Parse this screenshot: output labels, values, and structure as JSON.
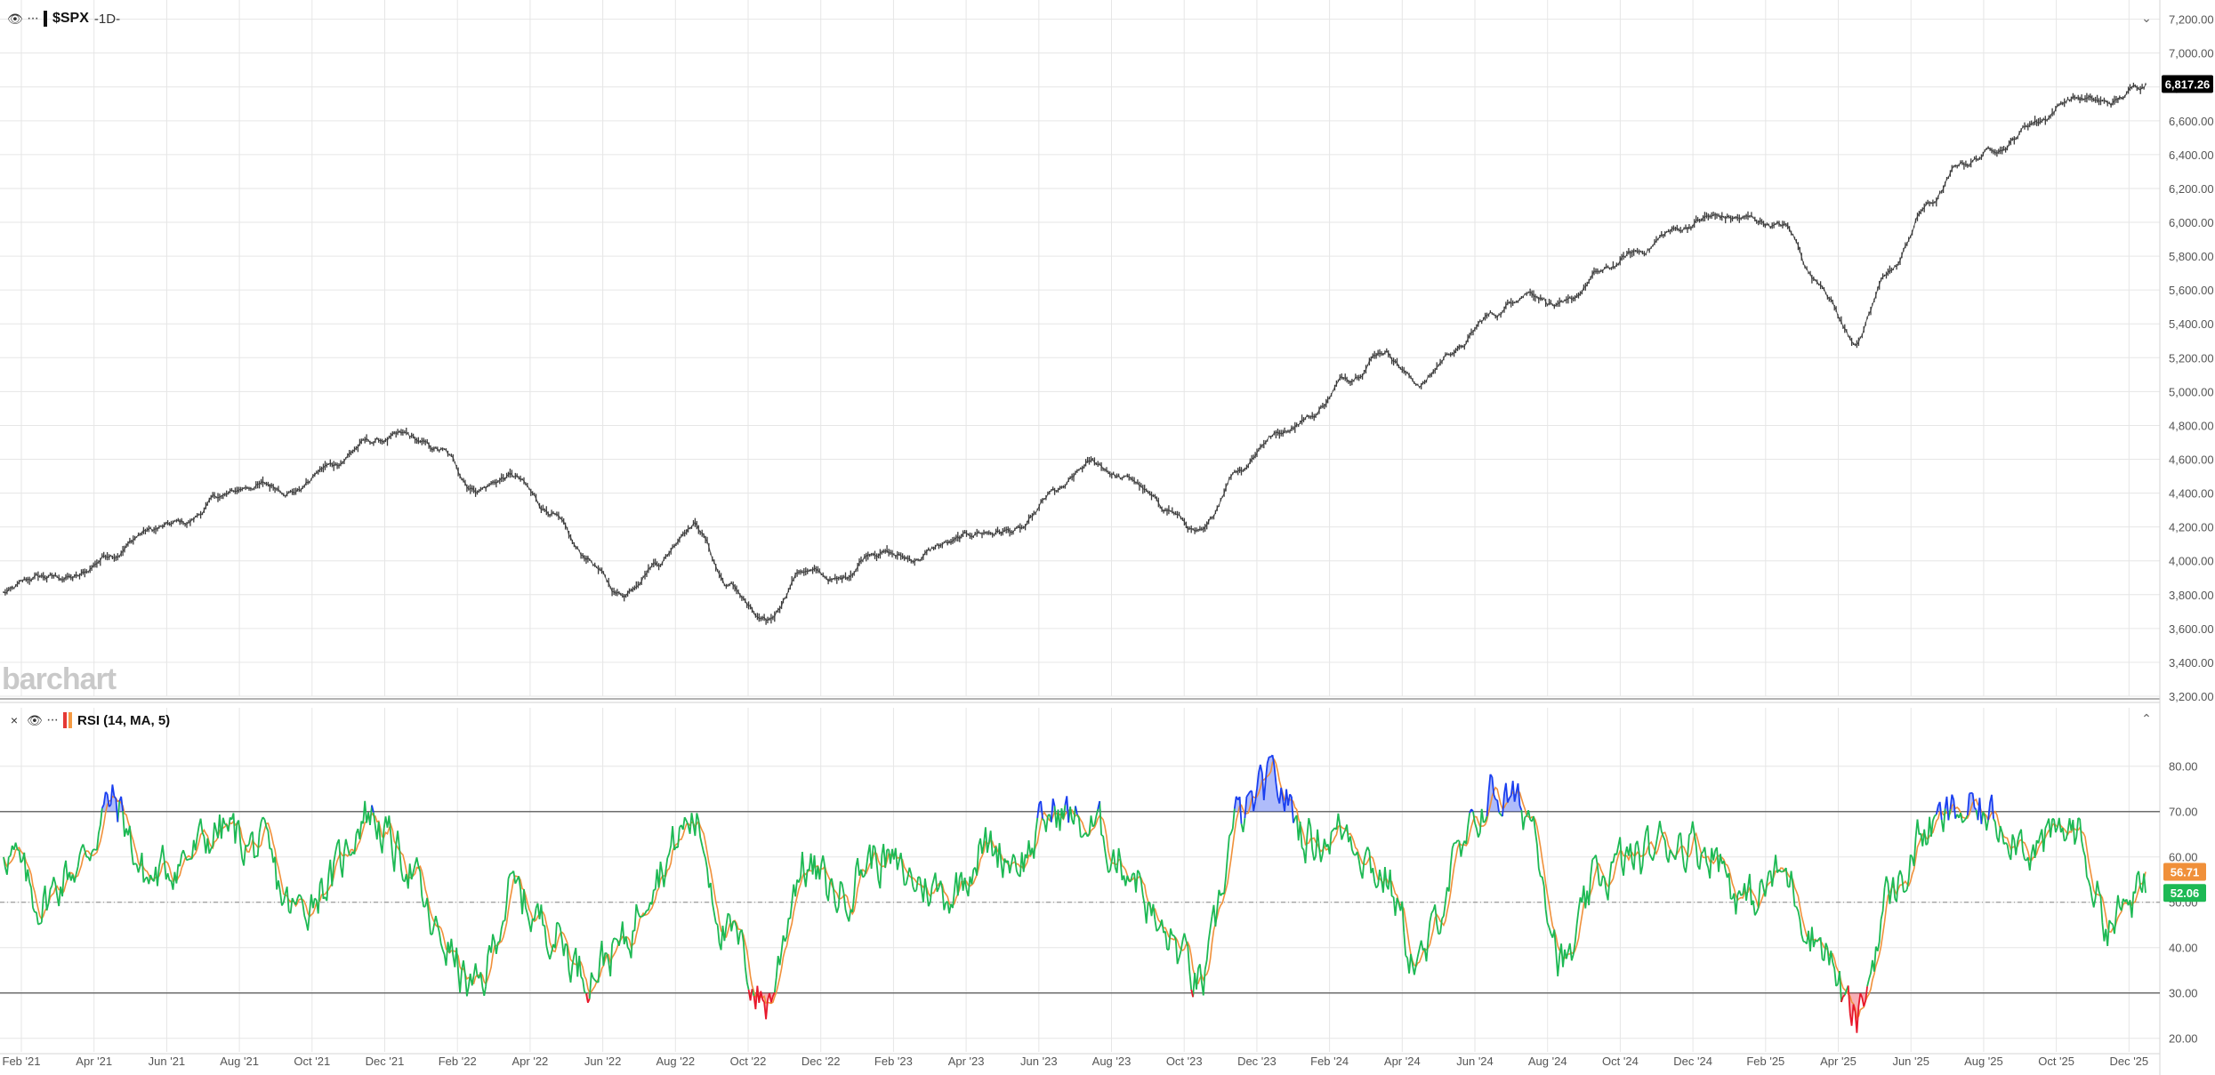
{
  "price_panel": {
    "symbol": "$SPX",
    "timeframe": "-1D-",
    "last_price_label": "6,817.26",
    "watermark": "barchart"
  },
  "rsi_panel": {
    "indicator_label": "RSI (14, MA, 5)",
    "rsi_value_label": "52.06",
    "ma_value_label": "56.71"
  },
  "icons": {
    "visibility": "eye-icon",
    "more": "more-dots-icon",
    "close": "close-icon",
    "collapse": "chevron-down-icon",
    "expand": "chevron-up-icon"
  },
  "colors": {
    "price_line": "#3a3a3a",
    "rsi_line": "#1db954",
    "rsi_ma_line": "#f0903a",
    "overbought_fill": "#1a3ff0",
    "oversold_fill": "#e8182b",
    "last_price_tag": "#000000",
    "rsi_tag": "#1db954",
    "ma_tag": "#f0903a",
    "grid": "#e6e6e6"
  },
  "chart_data": [
    {
      "type": "line",
      "name": "$SPX daily",
      "y_ticks": [
        "3,200.00",
        "3,400.00",
        "3,600.00",
        "3,800.00",
        "4,000.00",
        "4,200.00",
        "4,400.00",
        "4,600.00",
        "4,800.00",
        "5,000.00",
        "5,200.00",
        "5,400.00",
        "5,600.00",
        "5,800.00",
        "6,000.00",
        "6,200.00",
        "6,400.00",
        "6,600.00",
        "6,800.00",
        "7,000.00",
        "7,200.00"
      ],
      "ylim": [
        3200,
        7240
      ],
      "x_tick_labels": [
        "Feb '21",
        "Apr '21",
        "Jun '21",
        "Aug '21",
        "Oct '21",
        "Dec '21",
        "Feb '22",
        "Apr '22",
        "Jun '22",
        "Aug '22",
        "Oct '22",
        "Dec '22",
        "Feb '23",
        "Apr '23",
        "Jun '23",
        "Aug '23",
        "Oct '23",
        "Dec '23",
        "Feb '24",
        "Apr '24",
        "Jun '24",
        "Aug '24",
        "Oct '24",
        "Dec '24",
        "Feb '25",
        "Apr '25",
        "Jun '25",
        "Aug '25",
        "Oct '25",
        "Dec '25"
      ],
      "x": [
        "Jan '21",
        "Feb '21",
        "Mar '21",
        "Apr '21",
        "May '21",
        "Jun '21",
        "Jul '21",
        "Aug '21",
        "Sep '21",
        "Oct '21",
        "Nov '21",
        "Dec '21",
        "Jan '22",
        "Feb '22",
        "Mar '22",
        "Apr '22",
        "May '22",
        "Jun '22",
        "Jul '22",
        "Aug '22",
        "Sep '22",
        "Oct '22",
        "Nov '22",
        "Dec '22",
        "Jan '23",
        "Feb '23",
        "Mar '23",
        "Apr '23",
        "May '23",
        "Jun '23",
        "Jul '23",
        "Aug '23",
        "Sep '23",
        "Oct '23",
        "Nov '23",
        "Dec '23",
        "Jan '24",
        "Feb '24",
        "Mar '24",
        "Apr '24",
        "May '24",
        "Jun '24",
        "Jul '24",
        "Aug '24",
        "Sep '24",
        "Oct '24",
        "Nov '24",
        "Dec '24",
        "Jan '25",
        "Feb '25",
        "Mar '25",
        "Apr '25",
        "May '25",
        "Jun '25",
        "Jul '25",
        "Aug '25",
        "Sep '25",
        "Oct '25",
        "Nov '25",
        "Dec '25"
      ],
      "values": [
        3810,
        3900,
        3900,
        4050,
        4180,
        4220,
        4380,
        4450,
        4420,
        4560,
        4700,
        4730,
        4650,
        4430,
        4500,
        4300,
        4020,
        3800,
        4000,
        4230,
        3850,
        3620,
        3950,
        3880,
        4070,
        4010,
        4100,
        4170,
        4180,
        4400,
        4570,
        4480,
        4310,
        4150,
        4550,
        4750,
        4860,
        5080,
        5250,
        5050,
        5250,
        5450,
        5600,
        5500,
        5700,
        5820,
        5950,
        6030,
        6020,
        5980,
        5650,
        5300,
        5720,
        6100,
        6350,
        6450,
        6600,
        6740,
        6700,
        6817.26
      ],
      "last_value": 6817.26
    },
    {
      "type": "line",
      "name": "RSI (14, MA, 5)",
      "y_ticks": [
        "20.00",
        "30.00",
        "40.00",
        "50.00",
        "60.00",
        "70.00",
        "80.00"
      ],
      "ylim": [
        17,
        87
      ],
      "reference_lines": [
        30,
        50,
        70
      ],
      "x": [
        "Jan '21",
        "Feb '21",
        "Mar '21",
        "Apr '21",
        "May '21",
        "Jun '21",
        "Jul '21",
        "Aug '21",
        "Sep '21",
        "Oct '21",
        "Nov '21",
        "Dec '21",
        "Jan '22",
        "Feb '22",
        "Mar '22",
        "Apr '22",
        "May '22",
        "Jun '22",
        "Jul '22",
        "Aug '22",
        "Sep '22",
        "Oct '22",
        "Nov '22",
        "Dec '22",
        "Jan '23",
        "Feb '23",
        "Mar '23",
        "Apr '23",
        "May '23",
        "Jun '23",
        "Jul '23",
        "Aug '23",
        "Sep '23",
        "Oct '23",
        "Nov '23",
        "Dec '23",
        "Jan '24",
        "Feb '24",
        "Mar '24",
        "Apr '24",
        "May '24",
        "Jun '24",
        "Jul '24",
        "Aug '24",
        "Sep '24",
        "Oct '24",
        "Nov '24",
        "Dec '24",
        "Jan '25",
        "Feb '25",
        "Mar '25",
        "Apr '25",
        "May '25",
        "Jun '25",
        "Jul '25",
        "Aug '25",
        "Sep '25",
        "Oct '25",
        "Nov '25",
        "Dec '25"
      ],
      "series": [
        {
          "name": "RSI",
          "values": [
            62,
            50,
            58,
            72,
            55,
            60,
            66,
            62,
            48,
            55,
            70,
            60,
            42,
            30,
            52,
            45,
            35,
            40,
            58,
            68,
            42,
            28,
            58,
            52,
            60,
            55,
            52,
            62,
            60,
            70,
            66,
            58,
            42,
            32,
            68,
            76,
            64,
            66,
            56,
            36,
            58,
            74,
            70,
            36,
            56,
            60,
            64,
            62,
            50,
            56,
            42,
            24,
            52,
            66,
            70,
            68,
            62,
            66,
            46,
            52.06
          ]
        },
        {
          "name": "MA",
          "values": [
            60,
            54,
            57,
            68,
            58,
            59,
            64,
            62,
            52,
            54,
            66,
            62,
            46,
            36,
            49,
            46,
            39,
            41,
            54,
            64,
            46,
            33,
            53,
            53,
            58,
            56,
            54,
            60,
            60,
            68,
            66,
            60,
            46,
            36,
            62,
            72,
            66,
            65,
            58,
            42,
            54,
            70,
            70,
            44,
            54,
            58,
            62,
            62,
            53,
            55,
            46,
            31,
            48,
            62,
            68,
            68,
            63,
            65,
            51,
            56.71
          ]
        }
      ],
      "last_rsi": 52.06,
      "last_ma": 56.71
    }
  ]
}
